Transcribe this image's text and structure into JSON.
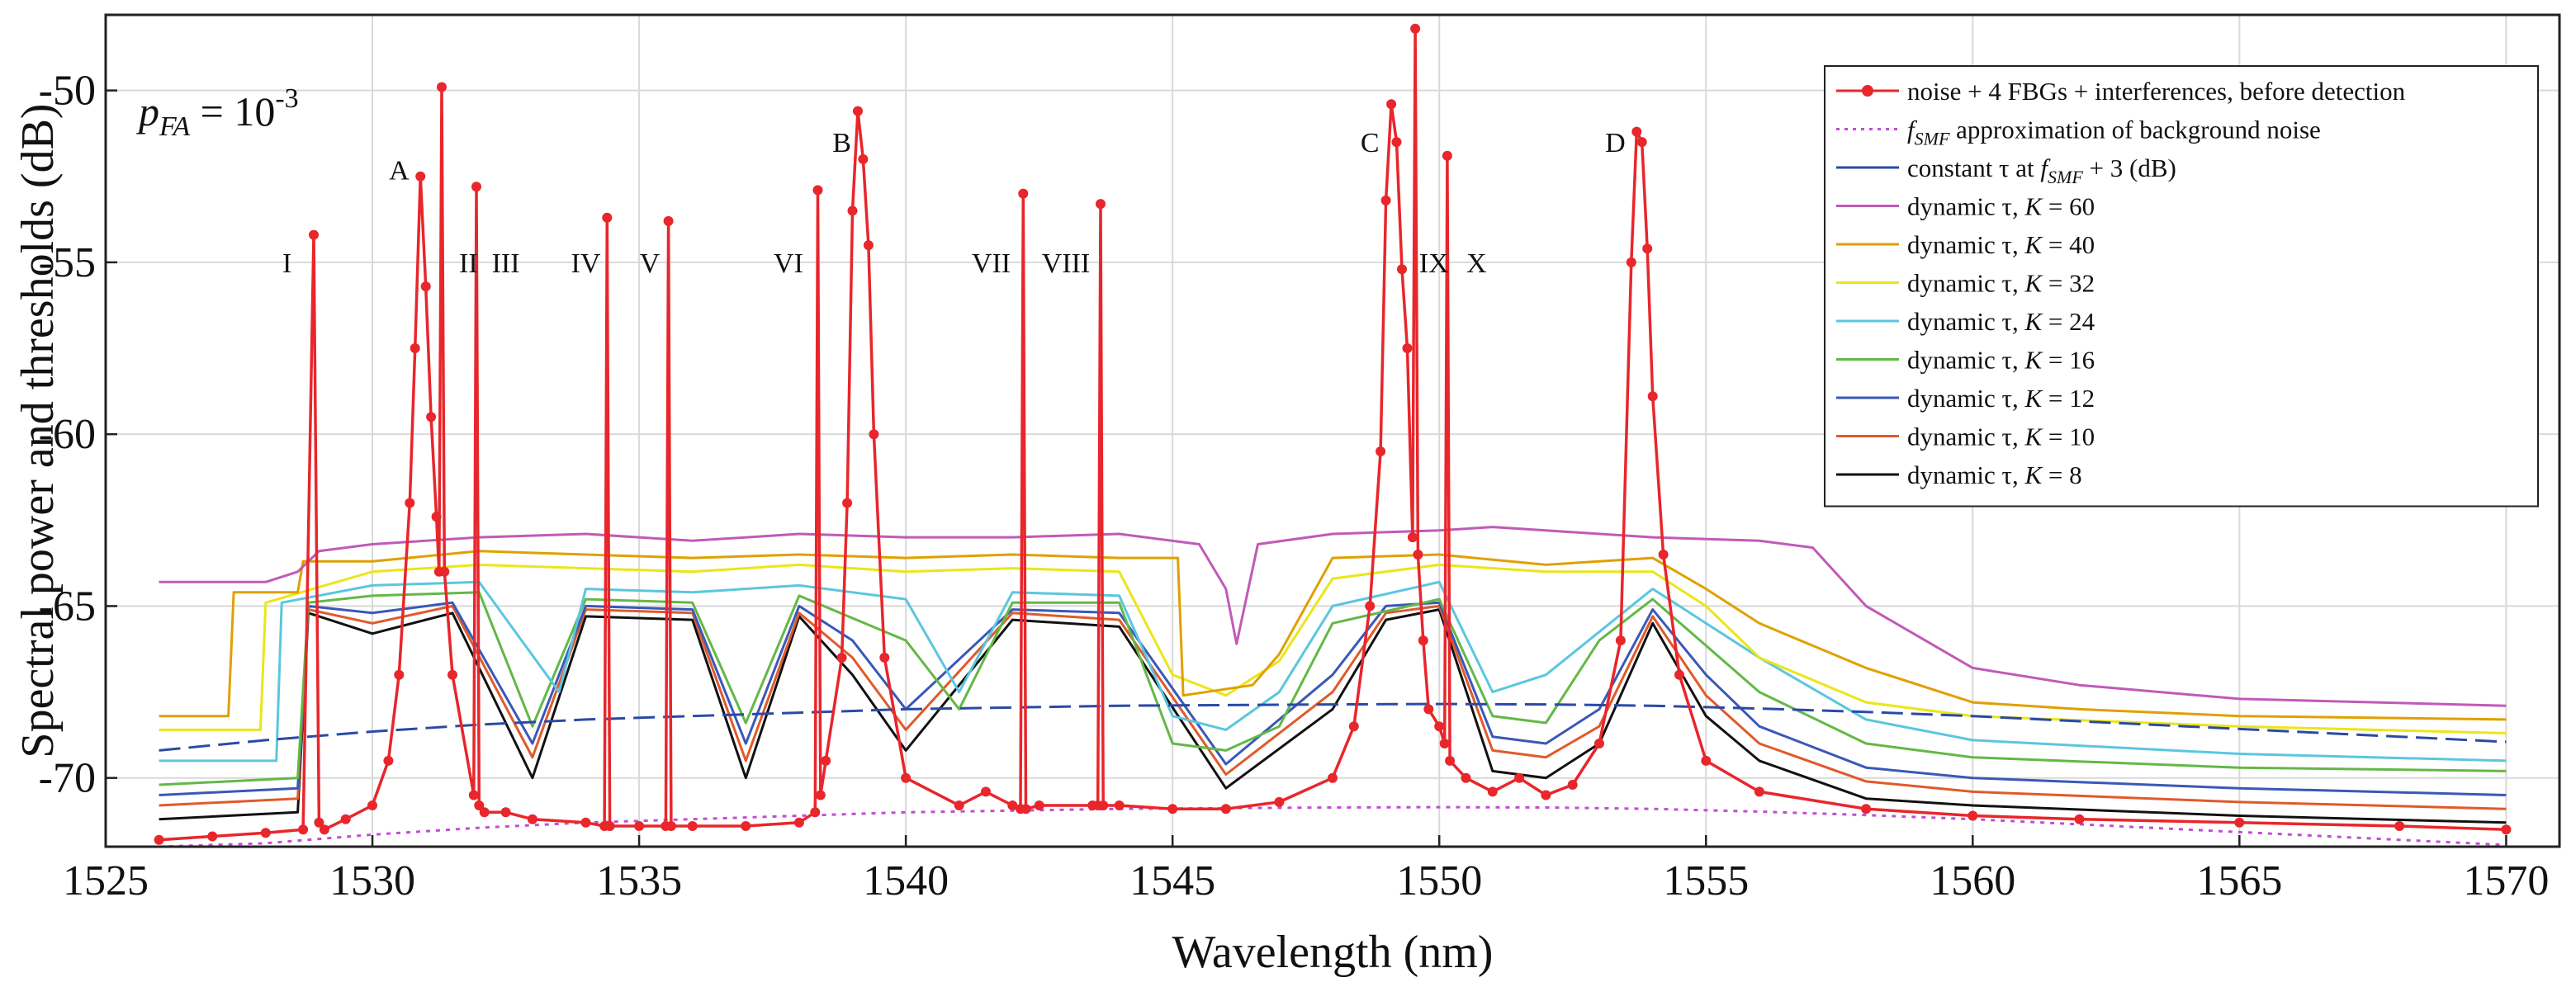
{
  "chart_data": {
    "type": "line",
    "title": "",
    "xlabel": "Wavelength (nm)",
    "ylabel": "Spectral power and thresholds (dB)",
    "xlim": [
      1525,
      1571
    ],
    "ylim": [
      -72,
      -47.8
    ],
    "xticks": [
      1525,
      1530,
      1535,
      1540,
      1545,
      1550,
      1555,
      1560,
      1565,
      1570
    ],
    "yticks": [
      -70,
      -65,
      -60,
      -55,
      -50
    ],
    "ytick_labels": [
      "-70",
      "-65",
      "-60",
      "-55",
      "-50"
    ],
    "grid": true,
    "legend_position": "top-right",
    "annotation": {
      "p_main": "p",
      "p_sub": "FA",
      "equals": " = 10",
      "exponent": "-3"
    },
    "legend": [
      {
        "text": "noise + 4 FBGs + interferences, before detection",
        "prefix": "",
        "italic": "",
        "sub": "",
        "suffix": "",
        "color": "#e8262b",
        "style": "marker"
      },
      {
        "text": " approximation of background noise",
        "prefix": "",
        "italic": "f",
        "sub": "SMF",
        "suffix": "",
        "color": "#c04fd1",
        "style": "dotted"
      },
      {
        "text": " + 3 (dB)",
        "prefix": "constant τ at ",
        "italic": "f",
        "sub": "SMF",
        "suffix": "",
        "color": "#2a4aa6",
        "style": "solid"
      },
      {
        "text": "60",
        "prefix": "dynamic τ, ",
        "italic": "K",
        "sub": "",
        "suffix": " = ",
        "color": "#c05ab8",
        "style": "solid"
      },
      {
        "text": "40",
        "prefix": "dynamic τ, ",
        "italic": "K",
        "sub": "",
        "suffix": " = ",
        "color": "#e0a000",
        "style": "solid"
      },
      {
        "text": "32",
        "prefix": "dynamic τ, ",
        "italic": "K",
        "sub": "",
        "suffix": " = ",
        "color": "#eae619",
        "style": "solid"
      },
      {
        "text": "24",
        "prefix": "dynamic τ, ",
        "italic": "K",
        "sub": "",
        "suffix": " = ",
        "color": "#5bc6df",
        "style": "solid"
      },
      {
        "text": "16",
        "prefix": "dynamic τ, ",
        "italic": "K",
        "sub": "",
        "suffix": " = ",
        "color": "#63b846",
        "style": "solid"
      },
      {
        "text": "12",
        "prefix": "dynamic τ, ",
        "italic": "K",
        "sub": "",
        "suffix": " = ",
        "color": "#3a58b8",
        "style": "solid"
      },
      {
        "text": "10",
        "prefix": "dynamic τ, ",
        "italic": "K",
        "sub": "",
        "suffix": " = ",
        "color": "#e05a2a",
        "style": "solid"
      },
      {
        "text": "8",
        "prefix": "dynamic τ, ",
        "italic": "K",
        "sub": "",
        "suffix": " = ",
        "color": "#111111",
        "style": "solid"
      }
    ],
    "peak_labels": [
      {
        "text": "I",
        "x": 1528.4,
        "y": -55.0
      },
      {
        "text": "A",
        "x": 1530.5,
        "y": -52.3
      },
      {
        "text": "II",
        "x": 1531.8,
        "y": -55.0
      },
      {
        "text": "III",
        "x": 1532.5,
        "y": -55.0
      },
      {
        "text": "IV",
        "x": 1534.0,
        "y": -55.0
      },
      {
        "text": "V",
        "x": 1535.2,
        "y": -55.0
      },
      {
        "text": "VI",
        "x": 1537.8,
        "y": -55.0
      },
      {
        "text": "B",
        "x": 1538.8,
        "y": -51.5
      },
      {
        "text": "VII",
        "x": 1541.6,
        "y": -55.0
      },
      {
        "text": "VIII",
        "x": 1543.0,
        "y": -55.0
      },
      {
        "text": "C",
        "x": 1548.7,
        "y": -51.5
      },
      {
        "text": "IX",
        "x": 1549.9,
        "y": -55.0
      },
      {
        "text": "X",
        "x": 1550.7,
        "y": -55.0
      },
      {
        "text": "D",
        "x": 1553.3,
        "y": -51.5
      }
    ],
    "series": [
      {
        "name": "noise + 4 FBGs + interferences, before detection",
        "color": "#e8262b",
        "x": [
          1526.0,
          1527.0,
          1528.0,
          1528.7,
          1528.9,
          1529.0,
          1529.1,
          1529.5,
          1530.0,
          1530.3,
          1530.5,
          1530.7,
          1530.8,
          1530.9,
          1531.0,
          1531.1,
          1531.2,
          1531.25,
          1531.3,
          1531.35,
          1531.5,
          1531.9,
          1531.95,
          1532.0,
          1532.1,
          1532.5,
          1533.0,
          1534.0,
          1534.35,
          1534.4,
          1534.45,
          1535.0,
          1535.5,
          1535.55,
          1535.6,
          1536.0,
          1537.0,
          1538.0,
          1538.3,
          1538.35,
          1538.4,
          1538.5,
          1538.8,
          1538.9,
          1539.0,
          1539.1,
          1539.2,
          1539.3,
          1539.4,
          1539.6,
          1540.0,
          1541.0,
          1541.5,
          1542.0,
          1542.15,
          1542.2,
          1542.25,
          1542.5,
          1543.5,
          1543.6,
          1543.65,
          1543.7,
          1544.0,
          1545.0,
          1546.0,
          1547.0,
          1548.0,
          1548.4,
          1548.7,
          1548.9,
          1549.0,
          1549.1,
          1549.2,
          1549.3,
          1549.4,
          1549.5,
          1549.55,
          1549.6,
          1549.7,
          1549.8,
          1550.0,
          1550.1,
          1550.15,
          1550.2,
          1550.5,
          1551.0,
          1551.5,
          1552.0,
          1552.5,
          1553.0,
          1553.4,
          1553.6,
          1553.7,
          1553.8,
          1553.9,
          1554.0,
          1554.2,
          1554.5,
          1555.0,
          1556.0,
          1558.0,
          1560.0,
          1562.0,
          1565.0,
          1568.0,
          1570.0
        ],
        "y": [
          -71.8,
          -71.7,
          -71.6,
          -71.5,
          -54.2,
          -71.3,
          -71.5,
          -71.2,
          -70.8,
          -69.5,
          -67.0,
          -62.0,
          -57.5,
          -52.5,
          -55.7,
          -59.5,
          -62.4,
          -64.0,
          -49.9,
          -64.0,
          -67.0,
          -70.5,
          -52.8,
          -70.8,
          -71.0,
          -71.0,
          -71.2,
          -71.3,
          -71.4,
          -53.7,
          -71.4,
          -71.4,
          -71.4,
          -53.8,
          -71.4,
          -71.4,
          -71.4,
          -71.3,
          -71.0,
          -52.9,
          -70.5,
          -69.5,
          -66.5,
          -62.0,
          -53.5,
          -50.6,
          -52.0,
          -54.5,
          -60.0,
          -66.5,
          -70.0,
          -70.8,
          -70.4,
          -70.8,
          -70.9,
          -53.0,
          -70.9,
          -70.8,
          -70.8,
          -70.8,
          -53.3,
          -70.8,
          -70.8,
          -70.9,
          -70.9,
          -70.7,
          -70.0,
          -68.5,
          -65.0,
          -60.5,
          -53.2,
          -50.4,
          -51.5,
          -55.2,
          -57.5,
          -63.0,
          -48.2,
          -63.5,
          -66.0,
          -68.0,
          -68.5,
          -69.0,
          -51.9,
          -69.5,
          -70.0,
          -70.4,
          -70.0,
          -70.5,
          -70.2,
          -69.0,
          -66.0,
          -55.0,
          -51.2,
          -51.5,
          -54.6,
          -58.9,
          -63.5,
          -67.0,
          -69.5,
          -70.4,
          -70.9,
          -71.1,
          -71.2,
          -71.3,
          -71.4,
          -71.5
        ]
      },
      {
        "name": "f_SMF approximation of background noise",
        "color": "#c04fd1",
        "x": [
          1526,
          1528,
          1530,
          1532,
          1534,
          1536,
          1538,
          1540,
          1542,
          1544,
          1546,
          1548,
          1550,
          1552,
          1554,
          1556,
          1558,
          1560,
          1562,
          1564,
          1566,
          1568,
          1570
        ],
        "y": [
          -72.2,
          -71.9,
          -71.65,
          -71.45,
          -71.3,
          -71.2,
          -71.1,
          -71.0,
          -70.95,
          -70.9,
          -70.88,
          -70.86,
          -70.85,
          -70.86,
          -70.9,
          -70.98,
          -71.08,
          -71.2,
          -71.35,
          -71.5,
          -71.65,
          -71.8,
          -71.95
        ]
      },
      {
        "name": "constant τ at f_SMF + 3 (dB)",
        "color": "#2a4aa6",
        "x": [
          1526,
          1528,
          1530,
          1532,
          1534,
          1536,
          1538,
          1540,
          1542,
          1544,
          1546,
          1548,
          1550,
          1552,
          1554,
          1556,
          1558,
          1560,
          1562,
          1564,
          1566,
          1568,
          1570
        ],
        "y": [
          -69.2,
          -68.9,
          -68.65,
          -68.45,
          -68.3,
          -68.2,
          -68.1,
          -68.0,
          -67.95,
          -67.9,
          -67.88,
          -67.86,
          -67.85,
          -67.86,
          -67.9,
          -67.98,
          -68.08,
          -68.2,
          -68.35,
          -68.5,
          -68.65,
          -68.8,
          -68.95
        ]
      },
      {
        "name": "dynamic τ, K = 60",
        "color": "#c05ab8",
        "x": [
          1526,
          1528,
          1528.6,
          1529,
          1530,
          1531,
          1532,
          1534,
          1536,
          1538,
          1540,
          1542,
          1544,
          1545.5,
          1546,
          1546.2,
          1546.6,
          1548,
          1550,
          1551,
          1552,
          1554,
          1556,
          1557,
          1558,
          1560,
          1562,
          1565,
          1570
        ],
        "y": [
          -64.3,
          -64.3,
          -64.0,
          -63.4,
          -63.2,
          -63.1,
          -63.0,
          -62.9,
          -63.1,
          -62.9,
          -63.0,
          -63.0,
          -62.9,
          -63.2,
          -64.5,
          -66.1,
          -63.2,
          -62.9,
          -62.8,
          -62.7,
          -62.8,
          -63.0,
          -63.1,
          -63.3,
          -65.0,
          -66.8,
          -67.3,
          -67.7,
          -67.9
        ]
      },
      {
        "name": "dynamic τ, K = 40",
        "color": "#e0a000",
        "x": [
          1526,
          1527.3,
          1527.4,
          1528.6,
          1528.7,
          1530,
          1532,
          1534,
          1536,
          1538,
          1540,
          1542,
          1544,
          1545.1,
          1545.2,
          1546.5,
          1547,
          1548,
          1550,
          1552,
          1554,
          1555,
          1556,
          1558,
          1560,
          1562,
          1565,
          1570
        ],
        "y": [
          -68.2,
          -68.2,
          -64.6,
          -64.6,
          -63.7,
          -63.7,
          -63.4,
          -63.5,
          -63.6,
          -63.5,
          -63.6,
          -63.5,
          -63.6,
          -63.6,
          -67.6,
          -67.3,
          -66.4,
          -63.6,
          -63.5,
          -63.8,
          -63.6,
          -64.5,
          -65.5,
          -66.8,
          -67.8,
          -68.0,
          -68.2,
          -68.3
        ]
      },
      {
        "name": "dynamic τ, K = 32",
        "color": "#eae619",
        "x": [
          1526,
          1527.9,
          1528.0,
          1530,
          1532,
          1534,
          1536,
          1538,
          1540,
          1542,
          1544,
          1545,
          1546,
          1547,
          1548,
          1550,
          1552,
          1554,
          1555,
          1556,
          1558,
          1560,
          1565,
          1570
        ],
        "y": [
          -68.6,
          -68.6,
          -64.9,
          -64.0,
          -63.8,
          -63.9,
          -64.0,
          -63.8,
          -64.0,
          -63.9,
          -64.0,
          -67.0,
          -67.6,
          -66.6,
          -64.2,
          -63.8,
          -64.0,
          -64.0,
          -65.0,
          -66.5,
          -67.8,
          -68.2,
          -68.5,
          -68.7
        ]
      },
      {
        "name": "dynamic τ, K = 24",
        "color": "#5bc6df",
        "x": [
          1526,
          1528.2,
          1528.3,
          1530,
          1532,
          1533.5,
          1534,
          1536,
          1538,
          1540,
          1541,
          1542,
          1544,
          1545,
          1546,
          1547,
          1548,
          1550,
          1551,
          1552,
          1554,
          1556,
          1558,
          1560,
          1565,
          1570
        ],
        "y": [
          -69.5,
          -69.5,
          -64.9,
          -64.4,
          -64.3,
          -67.5,
          -64.5,
          -64.6,
          -64.4,
          -64.8,
          -67.5,
          -64.6,
          -64.7,
          -68.2,
          -68.6,
          -67.5,
          -65.0,
          -64.3,
          -67.5,
          -67.0,
          -64.5,
          -66.5,
          -68.3,
          -68.9,
          -69.3,
          -69.5
        ]
      },
      {
        "name": "dynamic τ, K = 16",
        "color": "#63b846",
        "x": [
          1526,
          1528.6,
          1528.8,
          1530,
          1532,
          1533,
          1534,
          1536,
          1537,
          1538,
          1540,
          1541,
          1542,
          1544,
          1545,
          1546,
          1547,
          1548,
          1550,
          1551,
          1552,
          1553,
          1554,
          1556,
          1558,
          1560,
          1565,
          1570
        ],
        "y": [
          -70.2,
          -70.0,
          -64.9,
          -64.7,
          -64.6,
          -68.5,
          -64.8,
          -64.9,
          -68.4,
          -64.7,
          -66.0,
          -68.0,
          -64.9,
          -64.9,
          -69.0,
          -69.2,
          -68.5,
          -65.5,
          -64.8,
          -68.2,
          -68.4,
          -66.0,
          -64.8,
          -67.5,
          -69.0,
          -69.4,
          -69.7,
          -69.8
        ]
      },
      {
        "name": "dynamic τ, K = 12",
        "color": "#3a58b8",
        "x": [
          1526,
          1528.6,
          1528.8,
          1530,
          1531.5,
          1533,
          1534,
          1536,
          1537,
          1538,
          1539,
          1540,
          1542,
          1544,
          1546,
          1548,
          1549,
          1550,
          1551,
          1552,
          1553,
          1554,
          1555,
          1556,
          1558,
          1560,
          1565,
          1570
        ],
        "y": [
          -70.5,
          -70.3,
          -65.0,
          -65.2,
          -64.9,
          -69.0,
          -65.0,
          -65.1,
          -69.0,
          -65.0,
          -66.0,
          -68.0,
          -65.1,
          -65.2,
          -69.6,
          -67.0,
          -65.0,
          -64.9,
          -68.8,
          -69.0,
          -68.0,
          -65.1,
          -67.0,
          -68.5,
          -69.7,
          -70.0,
          -70.3,
          -70.5
        ]
      },
      {
        "name": "dynamic τ, K = 10",
        "color": "#e05a2a",
        "x": [
          1526,
          1528.6,
          1528.8,
          1530,
          1531.5,
          1533,
          1534,
          1536,
          1537,
          1538,
          1539,
          1540,
          1542,
          1544,
          1546,
          1548,
          1549,
          1550,
          1551,
          1552,
          1553,
          1554,
          1555,
          1556,
          1558,
          1560,
          1565,
          1570
        ],
        "y": [
          -70.8,
          -70.6,
          -65.1,
          -65.5,
          -65.0,
          -69.4,
          -65.1,
          -65.2,
          -69.5,
          -65.2,
          -66.5,
          -68.6,
          -65.2,
          -65.4,
          -69.9,
          -67.5,
          -65.2,
          -65.0,
          -69.2,
          -69.4,
          -68.5,
          -65.3,
          -67.6,
          -69.0,
          -70.1,
          -70.4,
          -70.7,
          -70.9
        ]
      },
      {
        "name": "dynamic τ, K = 8",
        "color": "#111111",
        "x": [
          1526,
          1528.6,
          1528.8,
          1530,
          1531.5,
          1533,
          1534,
          1536,
          1537,
          1538,
          1539,
          1540,
          1542,
          1544,
          1546,
          1548,
          1549,
          1550,
          1551,
          1552,
          1553,
          1554,
          1555,
          1556,
          1558,
          1560,
          1565,
          1570
        ],
        "y": [
          -71.2,
          -71.0,
          -65.2,
          -65.8,
          -65.2,
          -70.0,
          -65.3,
          -65.4,
          -70.0,
          -65.3,
          -67.0,
          -69.2,
          -65.4,
          -65.6,
          -70.3,
          -68.0,
          -65.4,
          -65.1,
          -69.8,
          -70.0,
          -69.0,
          -65.5,
          -68.2,
          -69.5,
          -70.6,
          -70.8,
          -71.1,
          -71.3
        ]
      }
    ]
  }
}
